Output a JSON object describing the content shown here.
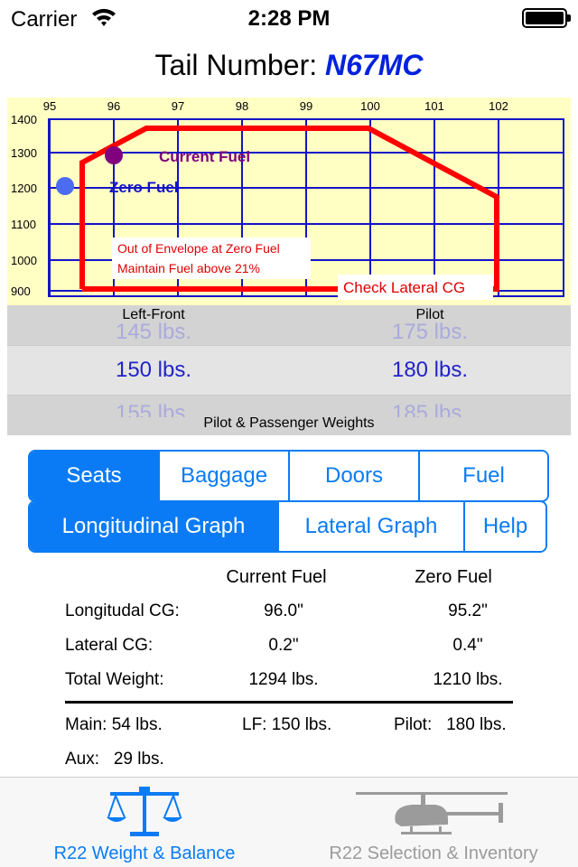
{
  "status_bar": {
    "carrier": "Carrier",
    "time": "2:28 PM"
  },
  "header": {
    "title_prefix": "Tail Number:",
    "tail_number": "N67MC"
  },
  "graph": {
    "x_ticks": [
      "95",
      "96",
      "97",
      "98",
      "99",
      "100",
      "101",
      "102"
    ],
    "y_ticks": [
      "1400",
      "1300",
      "1200",
      "1100",
      "1000",
      "900"
    ],
    "current_fuel_label": "Current Fuel",
    "zero_fuel_label": "Zero Fuel",
    "warning_line1": "Out of Envelope at Zero Fuel",
    "warning_line2": "Maintain Fuel above 21%",
    "lateral_warning": "Check Lateral CG",
    "colors": {
      "envelope": "#ff0000",
      "grid": "#1414c8",
      "background": "#ffffc4",
      "current": "#800080",
      "zero": "#4b6cf0"
    },
    "points": {
      "current_fuel": {
        "x": 96.0,
        "y": 1294
      },
      "zero_fuel": {
        "x": 95.2,
        "y": 1210
      }
    }
  },
  "picker": {
    "left_label": "Left-Front",
    "right_label": "Pilot",
    "left_above": "145 lbs.",
    "left_selected": "150 lbs.",
    "left_below": "155 lbs.",
    "right_above": "175 lbs.",
    "right_selected": "180 lbs.",
    "right_below": "185 lbs.",
    "footer": "Pilot & Passenger Weights"
  },
  "segments_top": [
    "Seats",
    "Baggage",
    "Doors",
    "Fuel"
  ],
  "segments_bottom": [
    "Longitudinal Graph",
    "Lateral Graph",
    "Help"
  ],
  "results": {
    "col_current": "Current Fuel",
    "col_zero": "Zero Fuel",
    "rows": [
      {
        "label": "Longitudal CG:",
        "current": "96.0\"",
        "zero": "95.2\""
      },
      {
        "label": "Lateral CG:",
        "current": "0.2\"",
        "zero": "0.4\""
      },
      {
        "label": "Total Weight:",
        "current": "1294 lbs.",
        "zero": "1210 lbs."
      }
    ],
    "main": "Main:  54 lbs.",
    "lf": "LF: 150 lbs.",
    "pilot": "Pilot:   180 lbs.",
    "aux": "Aux:   29 lbs."
  },
  "tabbar": {
    "tab1": "R22 Weight & Balance",
    "tab2": "R22 Selection & Inventory",
    "accent": "#0a7bf5"
  }
}
